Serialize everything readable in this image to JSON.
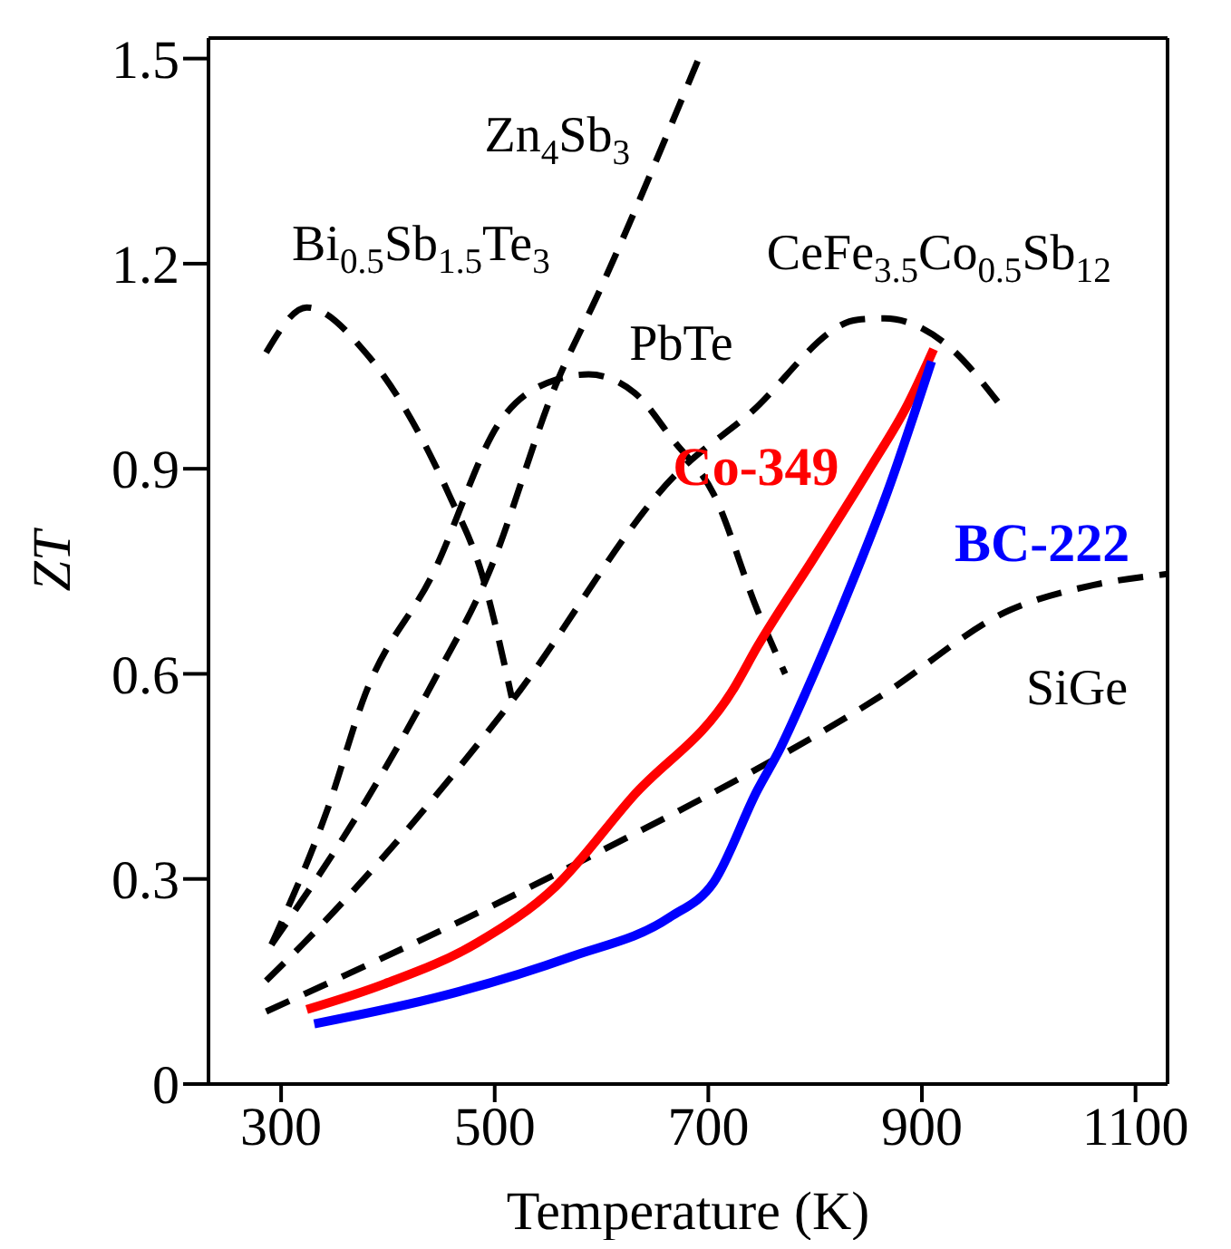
{
  "chart_data": {
    "type": "line",
    "xlabel": "Temperature (K)",
    "ylabel": "ZT",
    "xlim": [
      232,
      1130
    ],
    "ylim": [
      0,
      1.53
    ],
    "xticks": [
      300,
      500,
      700,
      900,
      1100
    ],
    "yticks": [
      0,
      0.3,
      0.6,
      0.9,
      1.2,
      1.5
    ],
    "legend": false,
    "marker": "none",
    "series": [
      {
        "name": "Zn$_{4}$Sb$_{3}$",
        "color": "#000000",
        "line_style": "dashed",
        "x": [
          291,
          374,
          442,
          494,
          557,
          599,
          691
        ],
        "values": [
          0.204,
          0.4,
          0.587,
          0.746,
          1.022,
          1.163,
          1.5
        ]
      },
      {
        "name": "Bi$_{0.5}$Sb$_{1.5}$Te$_{3}$",
        "color": "#000000",
        "line_style": "dashed",
        "x": [
          286,
          324,
          379,
          457,
          488,
          516
        ],
        "values": [
          1.07,
          1.136,
          1.07,
          0.863,
          0.746,
          0.565
        ]
      },
      {
        "name": "PbTe",
        "color": "#000000",
        "line_style": "dashed",
        "x": [
          291,
          343,
          379,
          442,
          505,
          557,
          588,
          631,
          667,
          705,
          746,
          772
        ],
        "values": [
          0.204,
          0.4,
          0.571,
          0.746,
          0.969,
          1.03,
          1.038,
          1.011,
          0.942,
          0.863,
          0.693,
          0.6
        ]
      },
      {
        "name": "CeFe$_{3.5}$Co$_{0.5}$Sb$_{12}$",
        "color": "#000000",
        "line_style": "dashed",
        "x": [
          286,
          320,
          516,
          673,
          736,
          840,
          865,
          922,
          971
        ],
        "values": [
          0.151,
          0.204,
          0.56,
          0.897,
          0.977,
          1.118,
          1.12,
          1.083,
          0.998
        ]
      },
      {
        "name": "SiGe",
        "color": "#000000",
        "line_style": "dashed",
        "x": [
          286,
          571,
          862,
          982,
          1061,
          1130
        ],
        "values": [
          0.106,
          0.318,
          0.568,
          0.693,
          0.73,
          0.746
        ]
      },
      {
        "name": "Co-349",
        "color": "#ff0000",
        "line_style": "solid",
        "x": [
          324,
          396,
          484,
          557,
          629,
          724,
          746,
          799,
          851,
          887,
          911
        ],
        "values": [
          0.109,
          0.146,
          0.207,
          0.289,
          0.42,
          0.579,
          0.64,
          0.77,
          0.9,
          0.995,
          1.075
        ]
      },
      {
        "name": "BC-222",
        "color": "#0000ff",
        "line_style": "solid",
        "x": [
          331,
          454,
          571,
          664,
          705,
          746,
          767,
          793,
          824,
          867,
          909
        ],
        "values": [
          0.088,
          0.13,
          0.186,
          0.244,
          0.295,
          0.43,
          0.49,
          0.579,
          0.693,
          0.863,
          1.057
        ]
      }
    ]
  }
}
